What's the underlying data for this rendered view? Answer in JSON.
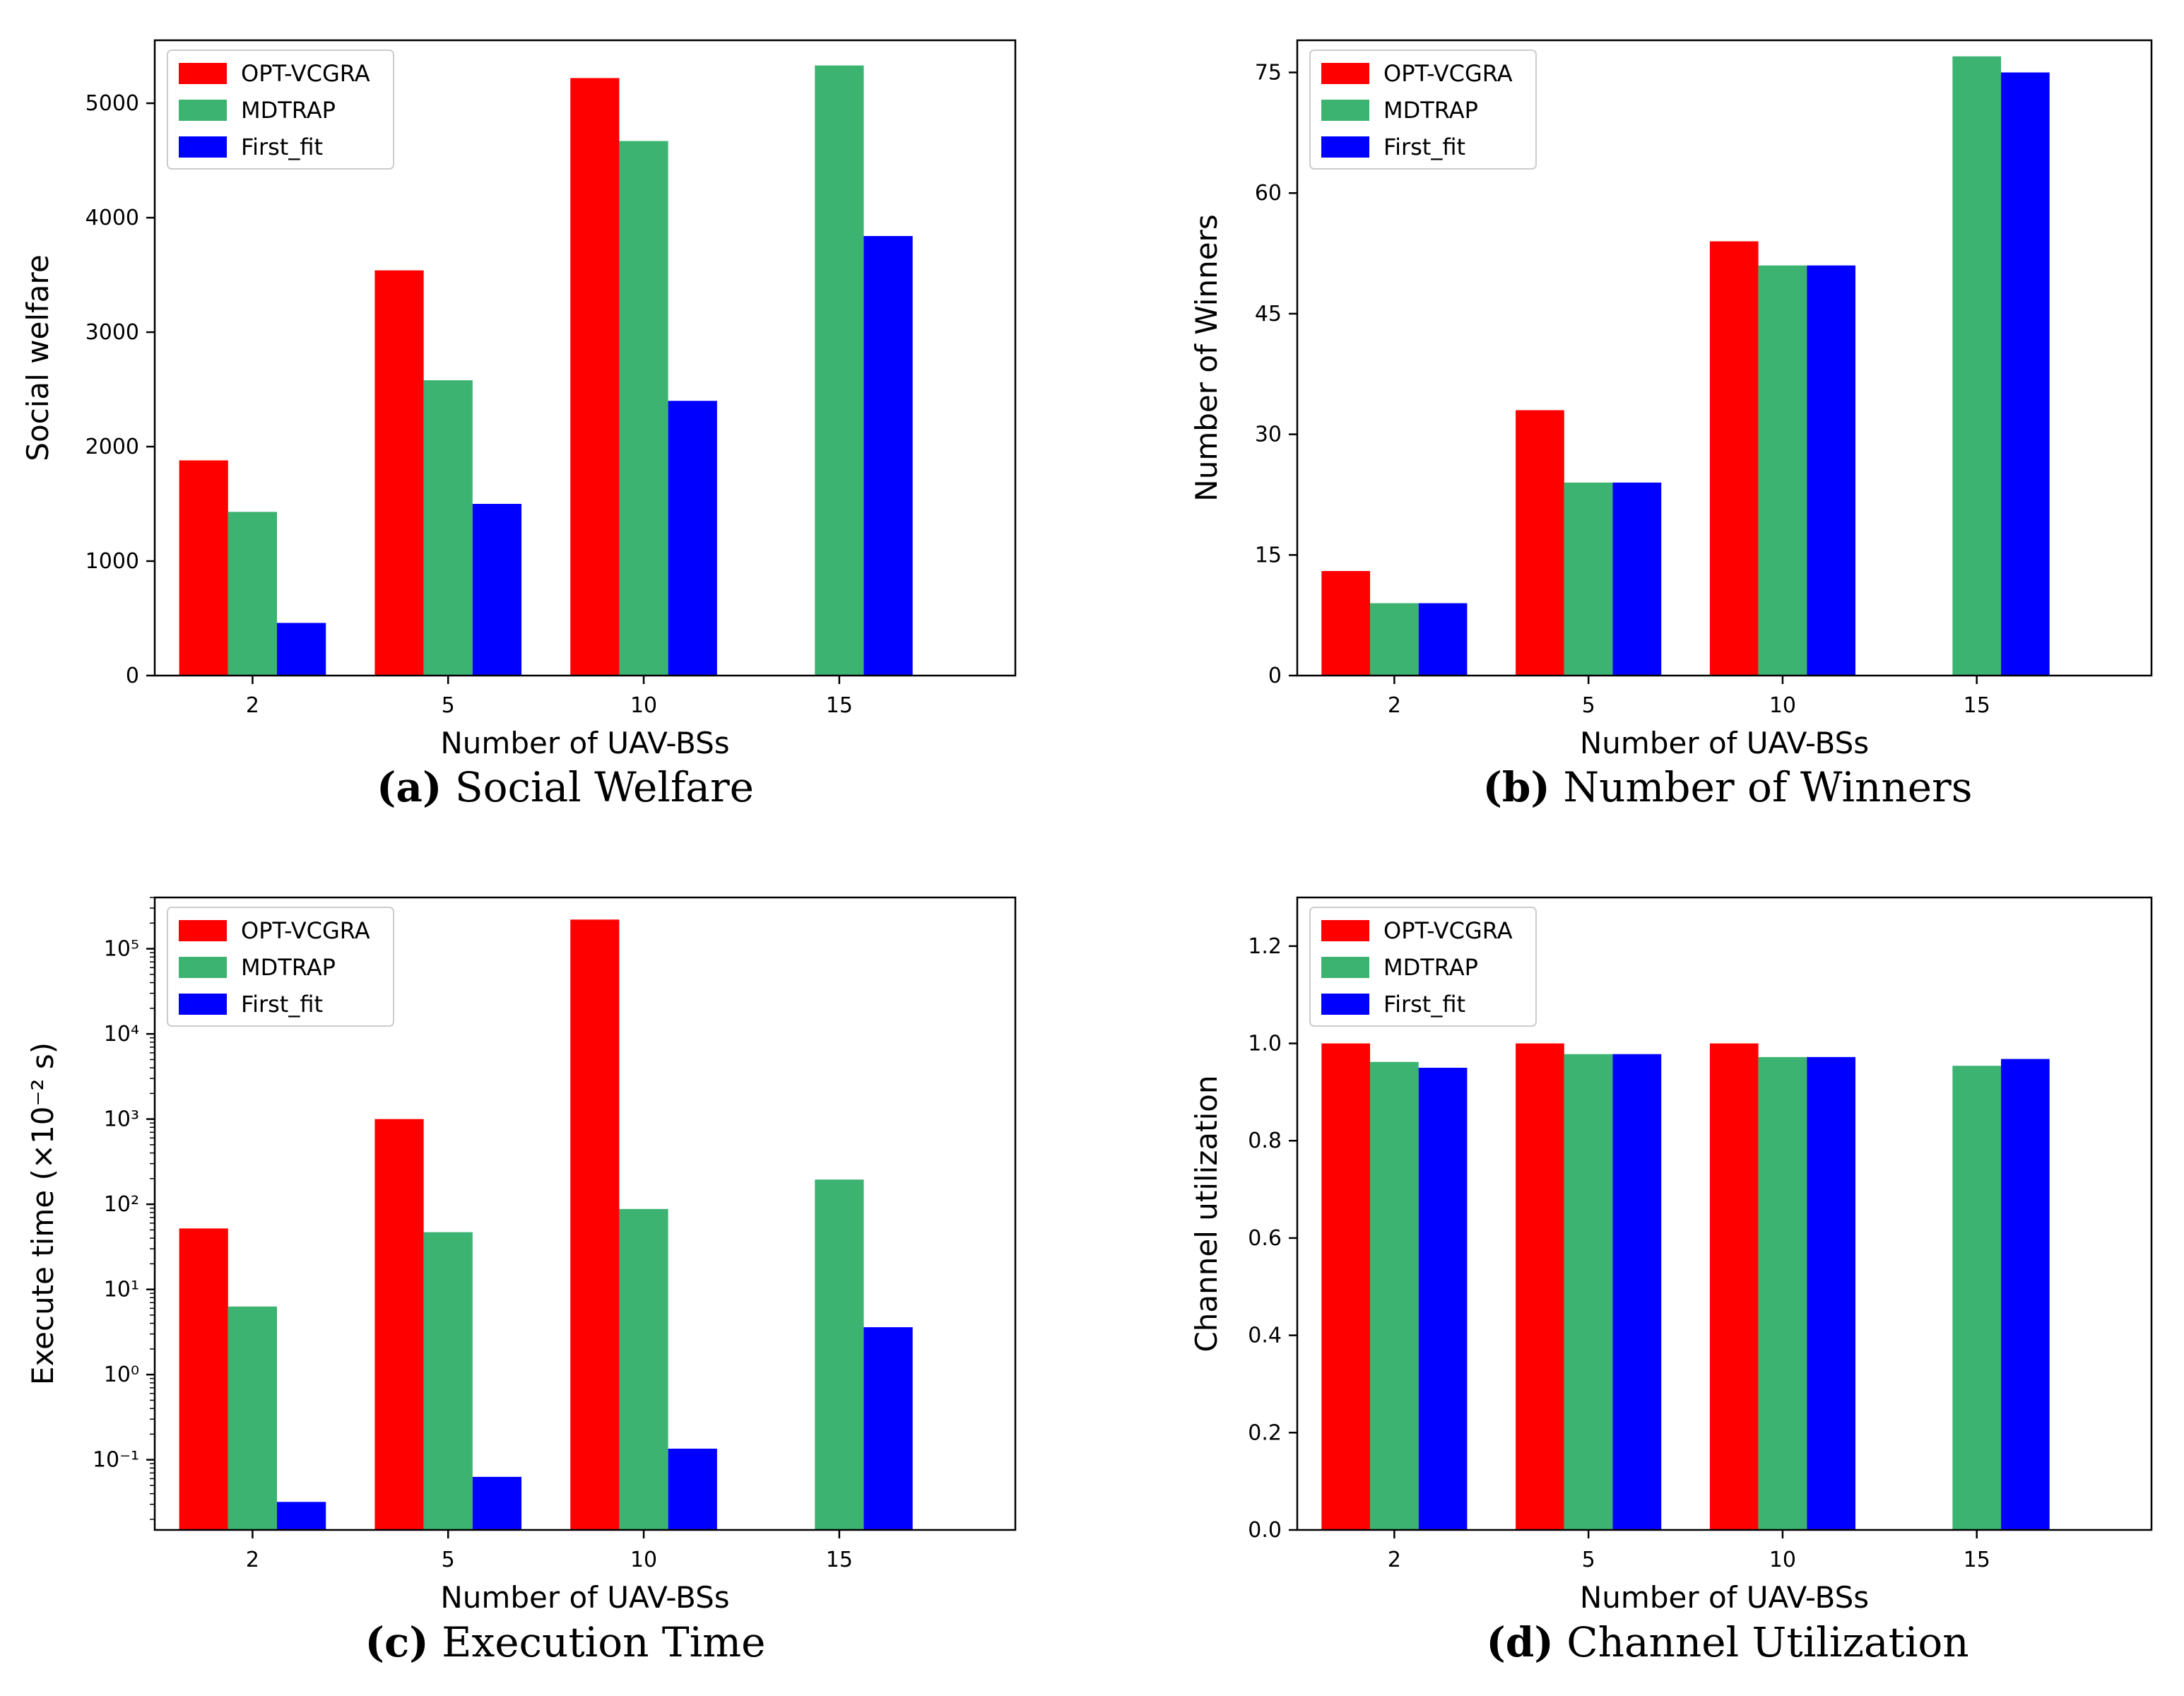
{
  "figure": {
    "x_categories": [
      "2",
      "5",
      "10",
      "15"
    ],
    "xlabel": "Number of UAV-BSs",
    "legend": [
      {
        "name": "OPT-VCGRA",
        "color": "#ff0000"
      },
      {
        "name": "MDTRAP",
        "color": "#3cb371"
      },
      {
        "name": "First_fit",
        "color": "#0000ff"
      }
    ]
  },
  "captions": [
    {
      "tag": "(a)",
      "text": "Social Welfare"
    },
    {
      "tag": "(b)",
      "text": "Number of Winners"
    },
    {
      "tag": "(c)",
      "text": "Execution Time"
    },
    {
      "tag": "(d)",
      "text": "Channel Utilization"
    }
  ],
  "chart_data": [
    {
      "type": "bar",
      "title": "Social Welfare",
      "categories": [
        "2",
        "5",
        "10",
        "15"
      ],
      "xlabel": "Number of UAV-BSs",
      "ylabel": "Social welfare",
      "yscale": "linear",
      "ylim": [
        0,
        5550
      ],
      "yticks": [
        0,
        1000,
        2000,
        3000,
        4000,
        5000
      ],
      "ytick_labels": [
        "0",
        "1000",
        "2000",
        "3000",
        "4000",
        "5000"
      ],
      "legend_position": "upper-left",
      "series": [
        {
          "name": "OPT-VCGRA",
          "color": "#ff0000",
          "values": [
            1880,
            3540,
            5220,
            null
          ]
        },
        {
          "name": "MDTRAP",
          "color": "#3cb371",
          "values": [
            1430,
            2580,
            4670,
            5330
          ]
        },
        {
          "name": "First_fit",
          "color": "#0000ff",
          "values": [
            460,
            1500,
            2400,
            3840
          ]
        }
      ]
    },
    {
      "type": "bar",
      "title": "Number of Winners",
      "categories": [
        "2",
        "5",
        "10",
        "15"
      ],
      "xlabel": "Number of UAV-BSs",
      "ylabel": "Number of Winners",
      "yscale": "linear",
      "ylim": [
        0,
        79
      ],
      "yticks": [
        0,
        15,
        30,
        45,
        60,
        75
      ],
      "ytick_labels": [
        "0",
        "15",
        "30",
        "45",
        "60",
        "75"
      ],
      "legend_position": "upper-left",
      "series": [
        {
          "name": "OPT-VCGRA",
          "color": "#ff0000",
          "values": [
            13,
            33,
            54,
            null
          ]
        },
        {
          "name": "MDTRAP",
          "color": "#3cb371",
          "values": [
            9,
            24,
            51,
            77
          ]
        },
        {
          "name": "First_fit",
          "color": "#0000ff",
          "values": [
            9,
            24,
            51,
            75
          ]
        }
      ]
    },
    {
      "type": "bar",
      "title": "Execution Time",
      "categories": [
        "2",
        "5",
        "10",
        "15"
      ],
      "xlabel": "Number of UAV-BSs",
      "ylabel": "Execute time (×10⁻² s)",
      "yscale": "log",
      "ylim": [
        0.015,
        400000
      ],
      "yticks": [
        0.1,
        1,
        10,
        100,
        1000,
        10000,
        100000
      ],
      "ytick_labels": [
        "10⁻¹",
        "10⁰",
        "10¹",
        "10²",
        "10³",
        "10⁴",
        "10⁵"
      ],
      "legend_position": "upper-left",
      "series": [
        {
          "name": "OPT-VCGRA",
          "color": "#ff0000",
          "values": [
            52,
            1000,
            220000,
            null
          ]
        },
        {
          "name": "MDTRAP",
          "color": "#3cb371",
          "values": [
            6.3,
            47,
            88,
            195
          ]
        },
        {
          "name": "First_fit",
          "color": "#0000ff",
          "values": [
            0.032,
            0.063,
            0.135,
            3.6
          ]
        }
      ]
    },
    {
      "type": "bar",
      "title": "Channel Utilization",
      "categories": [
        "2",
        "5",
        "10",
        "15"
      ],
      "xlabel": "Number of UAV-BSs",
      "ylabel": "Channel utilization",
      "yscale": "linear",
      "ylim": [
        0,
        1.3
      ],
      "yticks": [
        0,
        0.2,
        0.4,
        0.6,
        0.8,
        1.0,
        1.2
      ],
      "ytick_labels": [
        "0.0",
        "0.2",
        "0.4",
        "0.6",
        "0.8",
        "1.0",
        "1.2"
      ],
      "legend_position": "upper-left",
      "series": [
        {
          "name": "OPT-VCGRA",
          "color": "#ff0000",
          "values": [
            1.0,
            1.0,
            1.0,
            null
          ]
        },
        {
          "name": "MDTRAP",
          "color": "#3cb371",
          "values": [
            0.962,
            0.978,
            0.972,
            0.954
          ]
        },
        {
          "name": "First_fit",
          "color": "#0000ff",
          "values": [
            0.95,
            0.978,
            0.972,
            0.968
          ]
        }
      ]
    }
  ]
}
